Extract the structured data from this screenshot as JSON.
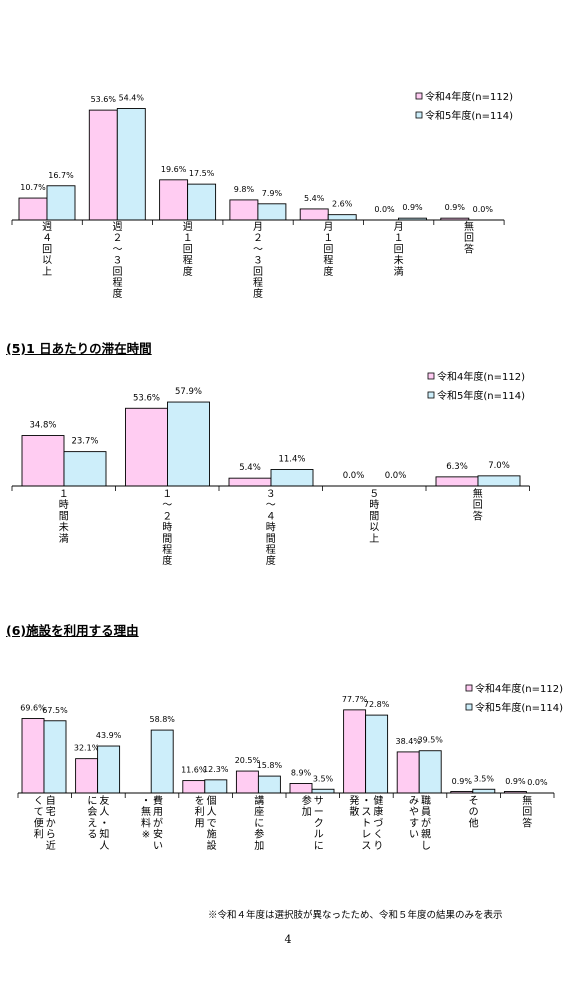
{
  "colors": {
    "series1": "#ffccf2",
    "series2": "#cdeefa",
    "axis": "#000000"
  },
  "sections": [
    {
      "title": ""
    },
    {
      "title": "(5)1 日あたりの滞在時間"
    },
    {
      "title": "(6)施設を利用する理由"
    }
  ],
  "footnote": "※令和４年度は選択肢が異なったため、令和５年度の結果のみを表示",
  "page_number": "4",
  "chart_data": [
    {
      "type": "bar",
      "categories": [
        "週４回以上",
        "週２～３回程度",
        "週１回程度",
        "月２～３回程度",
        "月１回程度",
        "月１回未満",
        "無回答"
      ],
      "series": [
        {
          "name": "令和4年度(n=112)",
          "values": [
            10.7,
            53.6,
            19.6,
            9.8,
            5.4,
            0.0,
            0.9
          ],
          "labels": [
            "10.7%",
            "53.6%",
            "19.6%",
            "9.8%",
            "5.4%",
            "0.0%",
            "0.9%"
          ]
        },
        {
          "name": "令和5年度(n=114)",
          "values": [
            16.7,
            54.4,
            17.5,
            7.9,
            2.6,
            0.9,
            0.0
          ],
          "labels": [
            "16.7%",
            "54.4%",
            "17.5%",
            "7.9%",
            "2.6%",
            "0.9%",
            "0.0%"
          ]
        }
      ],
      "legend": "top-right"
    },
    {
      "type": "bar",
      "categories": [
        "１時間未満",
        "１～２時間程度",
        "３～４時間程度",
        "５時間以上",
        "無回答"
      ],
      "series": [
        {
          "name": "令和4年度(n=112)",
          "values": [
            34.8,
            53.6,
            5.4,
            0.0,
            6.3
          ],
          "labels": [
            "34.8%",
            "53.6%",
            "5.4%",
            "0.0%",
            "6.3%"
          ]
        },
        {
          "name": "令和5年度(n=114)",
          "values": [
            23.7,
            57.9,
            11.4,
            0.0,
            7.0
          ],
          "labels": [
            "23.7%",
            "57.9%",
            "11.4%",
            "0.0%",
            "7.0%"
          ]
        }
      ],
      "legend": "top-right"
    },
    {
      "type": "bar",
      "categories": [
        "自宅から近くて便利",
        "友人・知人に会える",
        "費用が安い・無料※",
        "個人で施設を利用",
        "講座に参加",
        "サークルに参加",
        "健康づくり・ストレス発散",
        "職員が親しみやすい",
        "その他",
        "無回答"
      ],
      "series": [
        {
          "name": "令和4年度(n=112)",
          "values": [
            69.6,
            32.1,
            null,
            11.6,
            20.5,
            8.9,
            77.7,
            38.4,
            0.9,
            0.9
          ],
          "labels": [
            "69.6%",
            "32.1%",
            "",
            "11.6%",
            "20.5%",
            "8.9%",
            "77.7%",
            "38.4%",
            "0.9%",
            "0.9%"
          ]
        },
        {
          "name": "令和5年度(n=114)",
          "values": [
            67.5,
            43.9,
            58.8,
            12.3,
            15.8,
            3.5,
            72.8,
            39.5,
            3.5,
            0.0
          ],
          "labels": [
            "67.5%",
            "43.9%",
            "58.8%",
            "12.3%",
            "15.8%",
            "3.5%",
            "72.8%",
            "39.5%",
            "3.5%",
            "0.0%"
          ]
        }
      ],
      "legend": "top-right"
    }
  ]
}
